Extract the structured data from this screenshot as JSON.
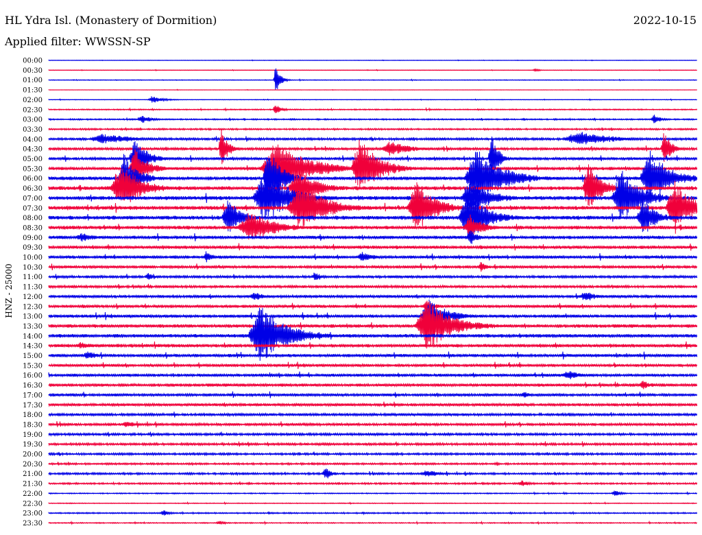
{
  "header": {
    "station": "HL Ydra Isl. (Monastery of Dormition)",
    "date": "2022-10-15",
    "filter": "Applied filter: WWSSN-SP"
  },
  "axis": {
    "ylabel": "HNZ - 25000"
  },
  "colors": {
    "even_trace": "#0000e6",
    "odd_trace": "#f0003a",
    "background": "#ffffff"
  },
  "chart_data": {
    "type": "line",
    "title": "HL Ydra Isl. (Monastery of Dormition)",
    "ylabel": "HNZ - 25000",
    "row_labels": [
      "00:00",
      "00:30",
      "01:00",
      "01:30",
      "02:00",
      "02:30",
      "03:00",
      "03:30",
      "04:00",
      "04:30",
      "05:00",
      "05:30",
      "06:00",
      "06:30",
      "07:00",
      "07:30",
      "08:00",
      "08:30",
      "09:00",
      "09:30",
      "10:00",
      "10:30",
      "11:00",
      "11:30",
      "12:00",
      "12:30",
      "13:00",
      "13:30",
      "14:00",
      "14:30",
      "15:00",
      "15:30",
      "16:00",
      "16:30",
      "17:00",
      "17:30",
      "18:00",
      "18:30",
      "19:00",
      "19:30",
      "20:00",
      "20:30",
      "21:00",
      "21:30",
      "22:00",
      "22:30",
      "23:00",
      "23:30"
    ],
    "minutes_per_row": 30,
    "trace_colors": [
      "blue",
      "red"
    ],
    "noise_level": [
      0.3,
      0.4,
      0.5,
      0.3,
      0.4,
      0.8,
      1.0,
      1.2,
      1.8,
      2.0,
      2.2,
      2.5,
      2.8,
      3.0,
      3.0,
      3.0,
      3.0,
      2.8,
      2.6,
      2.5,
      2.4,
      2.2,
      2.0,
      2.0,
      2.2,
      2.3,
      2.4,
      2.6,
      2.8,
      2.6,
      2.4,
      2.2,
      2.3,
      2.4,
      2.2,
      2.2,
      2.0,
      2.0,
      1.8,
      1.8,
      1.6,
      1.4,
      1.5,
      1.3,
      0.8,
      0.6,
      1.0,
      0.8
    ],
    "events": [
      {
        "row": 1,
        "minute": 22.5,
        "amplitude": 3,
        "duration_min": 0.3
      },
      {
        "row": 2,
        "minute": 10.5,
        "amplitude": 30,
        "duration_min": 0.3
      },
      {
        "row": 4,
        "minute": 4.8,
        "amplitude": 6,
        "duration_min": 0.8
      },
      {
        "row": 5,
        "minute": 10.5,
        "amplitude": 8,
        "duration_min": 0.5
      },
      {
        "row": 6,
        "minute": 4.3,
        "amplitude": 6,
        "duration_min": 0.8
      },
      {
        "row": 6,
        "minute": 28.0,
        "amplitude": 8,
        "duration_min": 0.5
      },
      {
        "row": 8,
        "minute": 2.5,
        "amplitude": 8,
        "duration_min": 2.5
      },
      {
        "row": 8,
        "minute": 24.5,
        "amplitude": 12,
        "duration_min": 2.5
      },
      {
        "row": 9,
        "minute": 8.0,
        "amplitude": 30,
        "duration_min": 0.5
      },
      {
        "row": 9,
        "minute": 15.8,
        "amplitude": 12,
        "duration_min": 1.5
      },
      {
        "row": 9,
        "minute": 28.5,
        "amplitude": 30,
        "duration_min": 0.5
      },
      {
        "row": 10,
        "minute": 4.0,
        "amplitude": 30,
        "duration_min": 1.0
      },
      {
        "row": 10,
        "minute": 20.5,
        "amplitude": 40,
        "duration_min": 0.5
      },
      {
        "row": 11,
        "minute": 4.0,
        "amplitude": 30,
        "duration_min": 1.0
      },
      {
        "row": 11,
        "minute": 10.5,
        "amplitude": 40,
        "duration_min": 2.5
      },
      {
        "row": 11,
        "minute": 14.4,
        "amplitude": 45,
        "duration_min": 1.5
      },
      {
        "row": 12,
        "minute": 3.5,
        "amplitude": 40,
        "duration_min": 1.0
      },
      {
        "row": 12,
        "minute": 10.2,
        "amplitude": 45,
        "duration_min": 1.0
      },
      {
        "row": 12,
        "minute": 19.8,
        "amplitude": 45,
        "duration_min": 2.0
      },
      {
        "row": 12,
        "minute": 27.8,
        "amplitude": 45,
        "duration_min": 1.5
      },
      {
        "row": 13,
        "minute": 3.3,
        "amplitude": 40,
        "duration_min": 1.5
      },
      {
        "row": 13,
        "minute": 11.5,
        "amplitude": 30,
        "duration_min": 1.5
      },
      {
        "row": 13,
        "minute": 25.0,
        "amplitude": 40,
        "duration_min": 1.0
      },
      {
        "row": 14,
        "minute": 10.0,
        "amplitude": 40,
        "duration_min": 2.0
      },
      {
        "row": 14,
        "minute": 19.5,
        "amplitude": 30,
        "duration_min": 1.5
      },
      {
        "row": 14,
        "minute": 26.5,
        "amplitude": 45,
        "duration_min": 1.5
      },
      {
        "row": 15,
        "minute": 11.6,
        "amplitude": 40,
        "duration_min": 2.0
      },
      {
        "row": 15,
        "minute": 17.0,
        "amplitude": 40,
        "duration_min": 1.5
      },
      {
        "row": 15,
        "minute": 29.0,
        "amplitude": 40,
        "duration_min": 1.5
      },
      {
        "row": 16,
        "minute": 8.3,
        "amplitude": 30,
        "duration_min": 1.0
      },
      {
        "row": 16,
        "minute": 19.4,
        "amplitude": 40,
        "duration_min": 1.5
      },
      {
        "row": 16,
        "minute": 27.5,
        "amplitude": 30,
        "duration_min": 1.0
      },
      {
        "row": 17,
        "minute": 9.3,
        "amplitude": 25,
        "duration_min": 2.0
      },
      {
        "row": 17,
        "minute": 19.5,
        "amplitude": 20,
        "duration_min": 1.0
      },
      {
        "row": 18,
        "minute": 1.5,
        "amplitude": 8,
        "duration_min": 1.0
      },
      {
        "row": 18,
        "minute": 19.5,
        "amplitude": 15,
        "duration_min": 0.5
      },
      {
        "row": 20,
        "minute": 7.3,
        "amplitude": 10,
        "duration_min": 0.5
      },
      {
        "row": 20,
        "minute": 14.5,
        "amplitude": 8,
        "duration_min": 1.0
      },
      {
        "row": 21,
        "minute": 20.0,
        "amplitude": 8,
        "duration_min": 0.5
      },
      {
        "row": 22,
        "minute": 4.6,
        "amplitude": 6,
        "duration_min": 0.5
      },
      {
        "row": 22,
        "minute": 12.3,
        "amplitude": 8,
        "duration_min": 0.5
      },
      {
        "row": 24,
        "minute": 9.5,
        "amplitude": 8,
        "duration_min": 0.8
      },
      {
        "row": 24,
        "minute": 24.8,
        "amplitude": 10,
        "duration_min": 0.8
      },
      {
        "row": 25,
        "minute": 17.5,
        "amplitude": 8,
        "duration_min": 0.8
      },
      {
        "row": 26,
        "minute": 17.6,
        "amplitude": 25,
        "duration_min": 1.5
      },
      {
        "row": 27,
        "minute": 17.5,
        "amplitude": 40,
        "duration_min": 2.0
      },
      {
        "row": 28,
        "minute": 9.8,
        "amplitude": 45,
        "duration_min": 2.0
      },
      {
        "row": 29,
        "minute": 1.5,
        "amplitude": 6,
        "duration_min": 1.0
      },
      {
        "row": 30,
        "minute": 1.8,
        "amplitude": 7,
        "duration_min": 1.0
      },
      {
        "row": 32,
        "minute": 24.0,
        "amplitude": 8,
        "duration_min": 1.0
      },
      {
        "row": 33,
        "minute": 27.5,
        "amplitude": 7,
        "duration_min": 0.8
      },
      {
        "row": 34,
        "minute": 22.0,
        "amplitude": 6,
        "duration_min": 0.5
      },
      {
        "row": 37,
        "minute": 3.6,
        "amplitude": 5,
        "duration_min": 1.0
      },
      {
        "row": 42,
        "minute": 12.8,
        "amplitude": 10,
        "duration_min": 0.5
      },
      {
        "row": 42,
        "minute": 17.5,
        "amplitude": 6,
        "duration_min": 1.0
      },
      {
        "row": 43,
        "minute": 21.9,
        "amplitude": 5,
        "duration_min": 0.6
      },
      {
        "row": 44,
        "minute": 26.2,
        "amplitude": 5,
        "duration_min": 0.5
      },
      {
        "row": 46,
        "minute": 5.3,
        "amplitude": 5,
        "duration_min": 0.5
      },
      {
        "row": 47,
        "minute": 7.9,
        "amplitude": 4,
        "duration_min": 0.5
      }
    ]
  }
}
